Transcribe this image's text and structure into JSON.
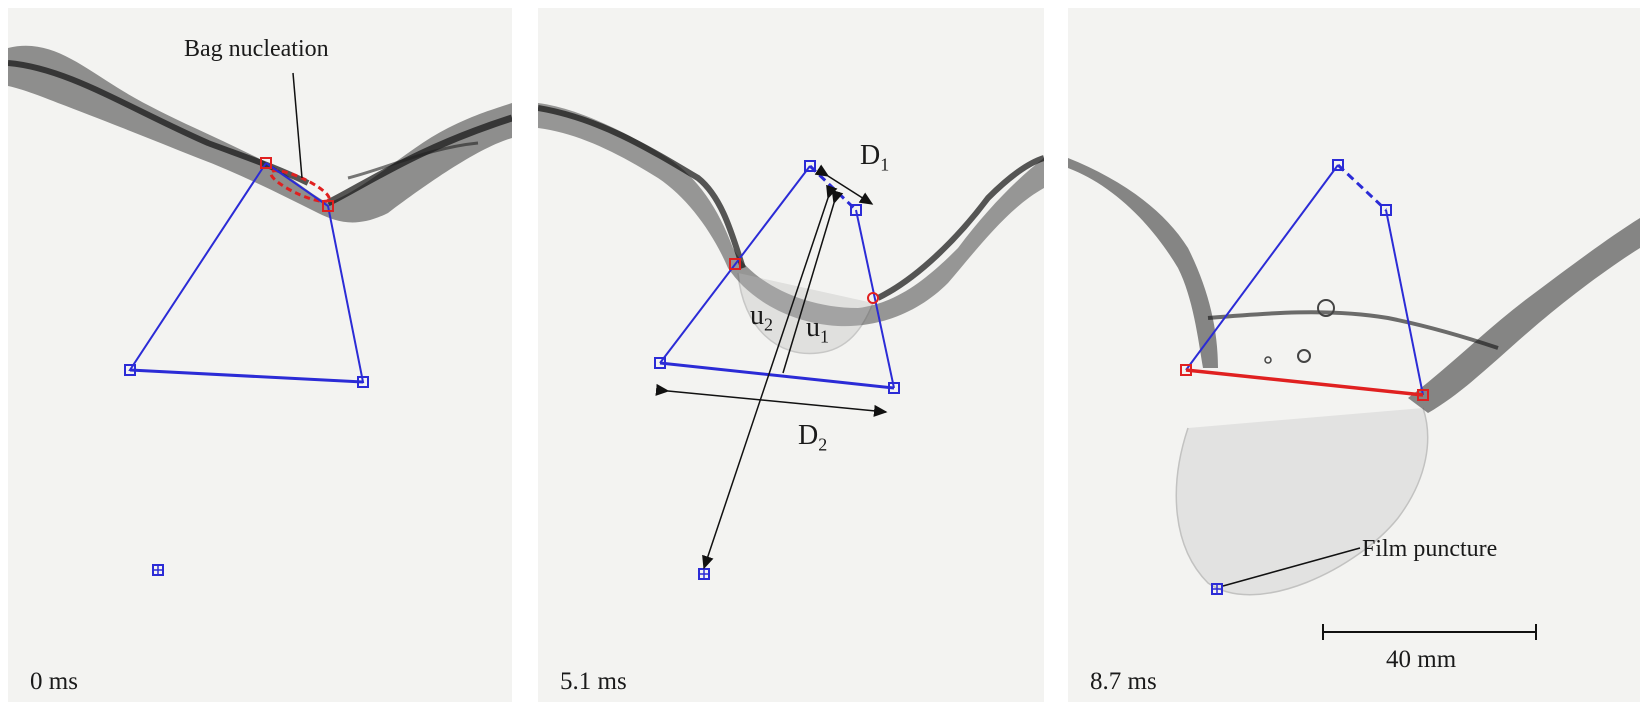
{
  "panels": [
    {
      "time": "0 ms",
      "annotation": "Bag nucleation"
    },
    {
      "time": "5.1 ms",
      "labels": {
        "d1": "D",
        "d1_sub": "1",
        "d2": "D",
        "d2_sub": "2",
        "u1": "u",
        "u1_sub": "1",
        "u2": "u",
        "u2_sub": "2"
      }
    },
    {
      "time": "8.7 ms",
      "annotation": "Film puncture",
      "scale_label": "40 mm"
    }
  ],
  "colors": {
    "frame_lines": "#2b2bd6",
    "highlight": "#e02020",
    "arrows": "#111111"
  }
}
